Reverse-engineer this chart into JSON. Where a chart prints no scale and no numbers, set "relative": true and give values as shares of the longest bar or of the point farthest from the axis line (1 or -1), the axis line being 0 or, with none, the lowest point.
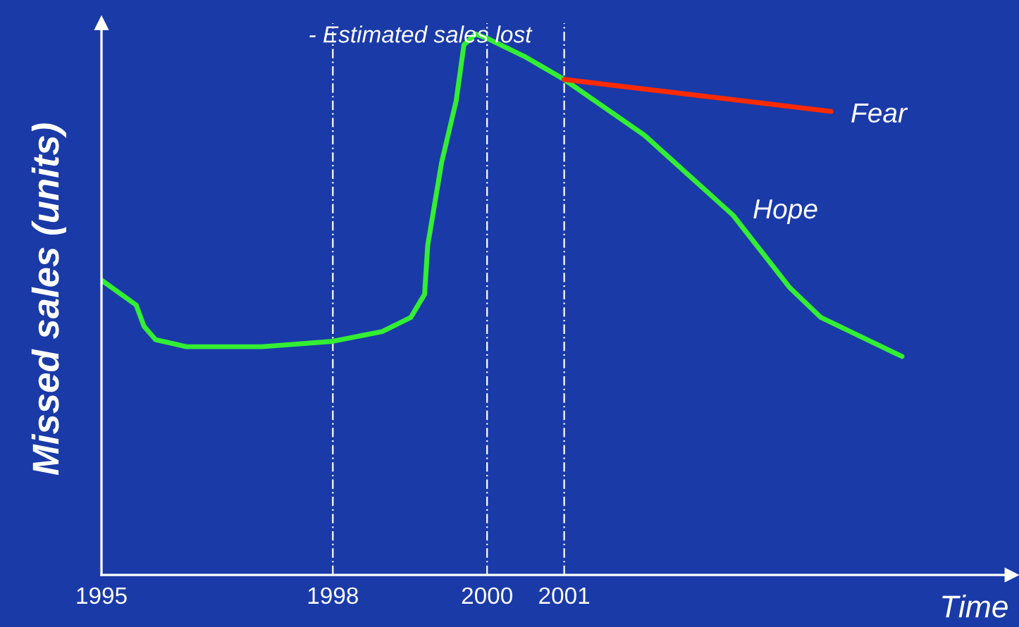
{
  "chart_data": {
    "type": "line",
    "relative": true,
    "xlabel": "Time",
    "ylabel": "Missed sales (units)",
    "annotations": [
      "- Estimated sales lost"
    ],
    "xlim": [
      1995,
      2006.8
    ],
    "xticks": [
      1995,
      1998,
      2000,
      2001
    ],
    "tick_labels": "x",
    "grid": false,
    "marker": "none",
    "line_style": "solid",
    "ref_lines": [
      {
        "axis": "x",
        "value": 1998,
        "color": "#ffffff",
        "line_style": "dashed"
      },
      {
        "axis": "x",
        "value": 2000,
        "color": "#ffffff",
        "line_style": "dashed"
      },
      {
        "axis": "x",
        "value": 2001,
        "color": "#ffffff",
        "line_style": "dashed"
      }
    ],
    "series": [
      {
        "name": "Hope",
        "color": "#33ee33",
        "x": [
          1995,
          1995.45,
          1995.55,
          1995.7,
          1996.1,
          1997.08,
          1998,
          1998.64,
          1999.01,
          1999.19,
          1999.23,
          1999.41,
          1999.6,
          1999.7,
          1999.85,
          2000,
          2000.48,
          2001,
          2002.04,
          2003.19,
          2003.92,
          2004.33,
          2005.38
        ],
        "values": [
          0.545,
          0.499,
          0.46,
          0.435,
          0.422,
          0.422,
          0.432,
          0.45,
          0.476,
          0.519,
          0.609,
          0.762,
          0.877,
          0.98,
          1.0,
          0.992,
          0.959,
          0.916,
          0.813,
          0.665,
          0.532,
          0.476,
          0.404
        ]
      },
      {
        "name": "Fear",
        "color": "#ff2a00",
        "x": [
          2001,
          2004.46
        ],
        "values": [
          0.916,
          0.857
        ]
      }
    ]
  }
}
